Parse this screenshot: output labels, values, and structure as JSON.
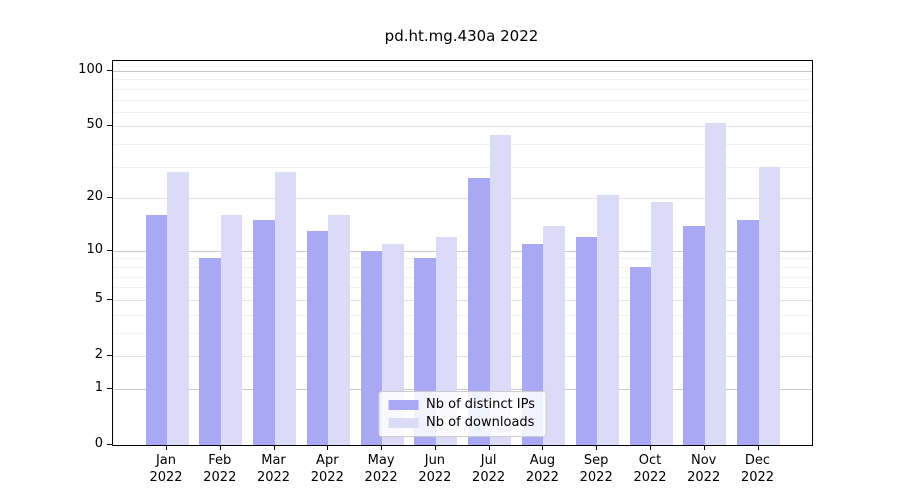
{
  "title": "pd.ht.mg.430a 2022",
  "colors": {
    "distinct_ips": "#a8a8f4",
    "downloads": "#dbdbf8",
    "axis": "#000000",
    "grid_major": "#c8c8c8",
    "grid_labeled": "#e4e4e4",
    "grid_minor": "#f2f2f2",
    "legend_border": "#cccccc"
  },
  "chart_data": {
    "type": "bar",
    "title": "pd.ht.mg.430a 2022",
    "xlabel": "",
    "ylabel": "",
    "y_scale": "log1p",
    "ylim": [
      0,
      113
    ],
    "grid": true,
    "legend_position": "lower center",
    "categories": [
      "Jan 2022",
      "Feb 2022",
      "Mar 2022",
      "Apr 2022",
      "May 2022",
      "Jun 2022",
      "Jul 2022",
      "Aug 2022",
      "Sep 2022",
      "Oct 2022",
      "Nov 2022",
      "Dec 2022"
    ],
    "series": [
      {
        "name": "Nb of distinct IPs",
        "color": "#a8a8f4",
        "values": [
          16,
          9,
          15,
          13,
          10,
          9,
          26,
          11,
          12,
          8,
          14,
          15
        ]
      },
      {
        "name": "Nb of downloads",
        "color": "#dbdbf8",
        "values": [
          28,
          16,
          28,
          16,
          11,
          12,
          45,
          14,
          21,
          19,
          52,
          30
        ]
      }
    ],
    "y_axis": {
      "tick_values": [
        0,
        1,
        2,
        5,
        10,
        20,
        50,
        100
      ],
      "tick_labels": [
        "0",
        "1",
        "2",
        "5",
        "10",
        "20",
        "50",
        "100"
      ],
      "emphasized_gridline_values": [
        1,
        10,
        100
      ],
      "minor_gridline_values": [
        3,
        4,
        6,
        7,
        8,
        9,
        30,
        40,
        60,
        70,
        80,
        90
      ]
    }
  }
}
